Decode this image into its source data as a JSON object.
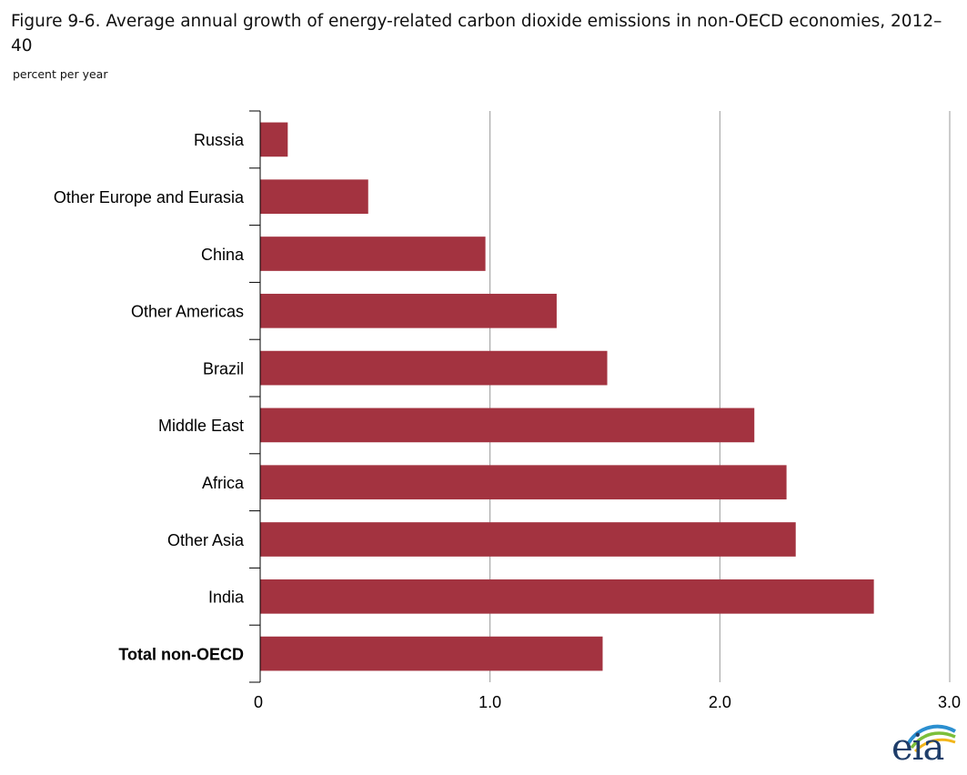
{
  "title": "Figure 9-6. Average annual growth of energy-related carbon dioxide emissions in non-OECD economies, 2012–40",
  "subtitle": "percent per year",
  "logo_text": "eia",
  "colors": {
    "bar": "#a33340",
    "grid": "#9a9a9a",
    "axis": "#000000",
    "logo_blue": "#1f3e6a"
  },
  "chart_data": {
    "type": "bar",
    "orientation": "horizontal",
    "title": "Figure 9-6. Average annual growth of energy-related carbon dioxide emissions in non-OECD economies, 2012–40",
    "xlabel": "",
    "ylabel": "",
    "unit": "percent per year",
    "categories": [
      "Russia",
      "Other Europe and Eurasia",
      "China",
      "Other Americas",
      "Brazil",
      "Middle East",
      "Africa",
      "Other Asia",
      "India",
      "Total non-OECD"
    ],
    "bold_categories": [
      "Total non-OECD"
    ],
    "values": [
      0.12,
      0.47,
      0.98,
      1.29,
      1.51,
      2.15,
      2.29,
      2.33,
      2.67,
      1.49
    ],
    "xlim": [
      0,
      3.0
    ],
    "xticks": [
      0,
      1.0,
      2.0,
      3.0
    ],
    "xtick_labels": [
      "0",
      "1.0",
      "2.0",
      "3.0"
    ],
    "grid": true,
    "legend": "none"
  }
}
